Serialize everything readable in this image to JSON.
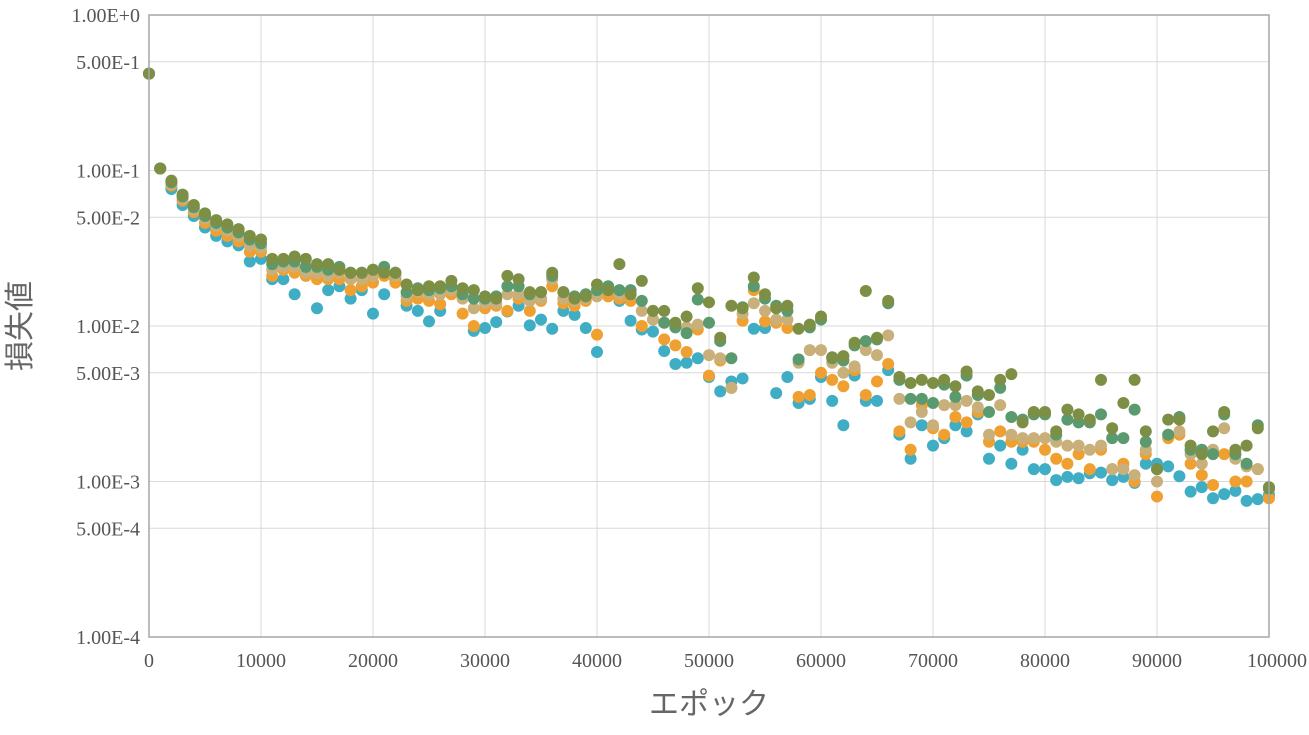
{
  "chart_data": {
    "type": "scatter",
    "xlabel": "エポック",
    "ylabel": "損失値",
    "x_scale": "linear",
    "y_scale": "log",
    "xlim": [
      0,
      100000
    ],
    "ylim": [
      0.0001,
      1
    ],
    "grid": true,
    "legend": "none",
    "x_ticks": [
      {
        "value": 0,
        "label": "0"
      },
      {
        "value": 10000,
        "label": "10000"
      },
      {
        "value": 20000,
        "label": "20000"
      },
      {
        "value": 30000,
        "label": "30000"
      },
      {
        "value": 40000,
        "label": "40000"
      },
      {
        "value": 50000,
        "label": "50000"
      },
      {
        "value": 60000,
        "label": "60000"
      },
      {
        "value": 70000,
        "label": "70000"
      },
      {
        "value": 80000,
        "label": "80000"
      },
      {
        "value": 90000,
        "label": "90000"
      },
      {
        "value": 100000,
        "label": "100000"
      }
    ],
    "y_ticks": [
      {
        "value": 1,
        "label": "1.00E+0"
      },
      {
        "value": 0.5,
        "label": "5.00E-1"
      },
      {
        "value": 0.1,
        "label": "1.00E-1"
      },
      {
        "value": 0.05,
        "label": "5.00E-2"
      },
      {
        "value": 0.01,
        "label": "1.00E-2"
      },
      {
        "value": 0.005,
        "label": "5.00E-3"
      },
      {
        "value": 0.001,
        "label": "1.00E-3"
      },
      {
        "value": 0.0005,
        "label": "5.00E-4"
      },
      {
        "value": 0.0001,
        "label": "1.00E-4"
      }
    ],
    "x": [
      0,
      1000,
      2000,
      3000,
      4000,
      5000,
      6000,
      7000,
      8000,
      9000,
      10000,
      11000,
      12000,
      13000,
      14000,
      15000,
      16000,
      17000,
      18000,
      19000,
      20000,
      21000,
      22000,
      23000,
      24000,
      25000,
      26000,
      27000,
      28000,
      29000,
      30000,
      31000,
      32000,
      33000,
      34000,
      35000,
      36000,
      37000,
      38000,
      39000,
      40000,
      41000,
      42000,
      43000,
      44000,
      45000,
      46000,
      47000,
      48000,
      49000,
      50000,
      51000,
      52000,
      53000,
      54000,
      55000,
      56000,
      57000,
      58000,
      59000,
      60000,
      61000,
      62000,
      63000,
      64000,
      65000,
      66000,
      67000,
      68000,
      69000,
      70000,
      71000,
      72000,
      73000,
      74000,
      75000,
      76000,
      77000,
      78000,
      79000,
      80000,
      81000,
      82000,
      83000,
      84000,
      85000,
      86000,
      87000,
      88000,
      89000,
      90000,
      91000,
      92000,
      93000,
      94000,
      95000,
      96000,
      97000,
      98000,
      99000,
      100000
    ],
    "series": [
      {
        "color": "#3fadc4",
        "values": [
          0.42,
          0.103,
          0.076,
          0.06,
          0.051,
          0.043,
          0.038,
          0.035,
          0.033,
          0.026,
          0.027,
          0.02,
          0.02,
          0.016,
          0.022,
          0.013,
          0.017,
          0.018,
          0.015,
          0.017,
          0.012,
          0.016,
          0.02,
          0.0135,
          0.0125,
          0.0107,
          0.0125,
          0.0165,
          0.0155,
          0.0093,
          0.0097,
          0.0106,
          0.0124,
          0.0135,
          0.0101,
          0.011,
          0.0096,
          0.0125,
          0.0118,
          0.0097,
          0.0068,
          0.0158,
          0.0145,
          0.0108,
          0.0095,
          0.0092,
          0.0069,
          0.0057,
          0.0058,
          0.0062,
          0.0047,
          0.0038,
          0.0044,
          0.0046,
          0.0096,
          0.0097,
          0.0037,
          0.0047,
          0.0032,
          0.0034,
          0.0047,
          0.0033,
          0.0023,
          0.0048,
          0.0033,
          0.0033,
          0.0052,
          0.002,
          0.0014,
          0.0023,
          0.0017,
          0.0019,
          0.0023,
          0.0021,
          0.0027,
          0.0014,
          0.0017,
          0.0013,
          0.0016,
          0.0012,
          0.0012,
          0.00102,
          0.00107,
          0.00105,
          0.00113,
          0.00114,
          0.00102,
          0.00107,
          0.00098,
          0.0013,
          0.0013,
          0.00125,
          0.00108,
          0.00086,
          0.00092,
          0.00078,
          0.00083,
          0.00087,
          0.00075,
          0.00077,
          0.00082
        ]
      },
      {
        "color": "#f0a030",
        "values": [
          0.42,
          0.103,
          0.08,
          0.064,
          0.054,
          0.046,
          0.041,
          0.038,
          0.035,
          0.03,
          0.03,
          0.021,
          0.023,
          0.022,
          0.021,
          0.02,
          0.02,
          0.02,
          0.017,
          0.018,
          0.019,
          0.021,
          0.019,
          0.0145,
          0.015,
          0.0145,
          0.0138,
          0.016,
          0.012,
          0.01,
          0.013,
          0.0135,
          0.0125,
          0.015,
          0.0125,
          0.0145,
          0.018,
          0.014,
          0.0135,
          0.0145,
          0.0088,
          0.0155,
          0.015,
          0.0145,
          0.01,
          0.011,
          0.0082,
          0.0075,
          0.0068,
          0.0095,
          0.0048,
          0.006,
          0.004,
          0.0108,
          0.017,
          0.0107,
          0.0105,
          0.0097,
          0.0035,
          0.0036,
          0.005,
          0.0045,
          0.0041,
          0.0052,
          0.0036,
          0.0044,
          0.0057,
          0.0021,
          0.0016,
          0.0031,
          0.0022,
          0.002,
          0.0026,
          0.0024,
          0.0028,
          0.0018,
          0.0021,
          0.0018,
          0.0018,
          0.0018,
          0.0016,
          0.0014,
          0.0013,
          0.0015,
          0.0012,
          0.0016,
          0.0012,
          0.0013,
          0.001,
          0.0015,
          0.0008,
          0.0019,
          0.002,
          0.0013,
          0.0011,
          0.00095,
          0.0015,
          0.001,
          0.001,
          0.0012,
          0.00078
        ]
      },
      {
        "color": "#c9b07a",
        "values": [
          0.42,
          0.103,
          0.082,
          0.066,
          0.056,
          0.049,
          0.044,
          0.041,
          0.038,
          0.033,
          0.032,
          0.023,
          0.024,
          0.024,
          0.022,
          0.022,
          0.021,
          0.022,
          0.02,
          0.02,
          0.021,
          0.022,
          0.021,
          0.0155,
          0.0165,
          0.016,
          0.016,
          0.017,
          0.015,
          0.013,
          0.014,
          0.014,
          0.016,
          0.016,
          0.0145,
          0.015,
          0.02,
          0.015,
          0.0145,
          0.015,
          0.0155,
          0.017,
          0.016,
          0.016,
          0.0125,
          0.011,
          0.0105,
          0.01,
          0.0098,
          0.0102,
          0.0065,
          0.0062,
          0.004,
          0.012,
          0.014,
          0.0125,
          0.011,
          0.011,
          0.0058,
          0.007,
          0.007,
          0.0058,
          0.005,
          0.0055,
          0.007,
          0.0065,
          0.0087,
          0.0034,
          0.0024,
          0.0028,
          0.0023,
          0.0031,
          0.0031,
          0.0033,
          0.003,
          0.002,
          0.0031,
          0.002,
          0.0019,
          0.0019,
          0.0019,
          0.0018,
          0.0017,
          0.0017,
          0.0016,
          0.0017,
          0.0012,
          0.0012,
          0.0011,
          0.0016,
          0.001,
          0.002,
          0.0021,
          0.0015,
          0.0013,
          0.0016,
          0.0022,
          0.0014,
          0.00125,
          0.0012,
          0.0009
        ]
      },
      {
        "color": "#5b9a6e",
        "values": [
          0.42,
          0.103,
          0.084,
          0.068,
          0.058,
          0.051,
          0.046,
          0.043,
          0.04,
          0.036,
          0.034,
          0.025,
          0.026,
          0.026,
          0.024,
          0.024,
          0.023,
          0.024,
          0.022,
          0.022,
          0.023,
          0.024,
          0.022,
          0.0165,
          0.0175,
          0.017,
          0.0175,
          0.018,
          0.016,
          0.015,
          0.015,
          0.0155,
          0.018,
          0.018,
          0.016,
          0.0165,
          0.021,
          0.0165,
          0.0155,
          0.016,
          0.017,
          0.018,
          0.017,
          0.017,
          0.0145,
          0.0125,
          0.0105,
          0.0098,
          0.009,
          0.0148,
          0.0105,
          0.008,
          0.0062,
          0.0132,
          0.018,
          0.015,
          0.0135,
          0.0125,
          0.0061,
          0.0098,
          0.011,
          0.0062,
          0.006,
          0.0075,
          0.008,
          0.0082,
          0.014,
          0.0045,
          0.0034,
          0.0034,
          0.0032,
          0.0042,
          0.0035,
          0.0048,
          0.0036,
          0.0028,
          0.004,
          0.0026,
          0.0025,
          0.0027,
          0.0027,
          0.002,
          0.0025,
          0.0024,
          0.0024,
          0.0027,
          0.0019,
          0.0019,
          0.0029,
          0.0018,
          0.0012,
          0.002,
          0.0026,
          0.0016,
          0.0016,
          0.0015,
          0.0027,
          0.0015,
          0.0013,
          0.0023,
          0.0009
        ]
      },
      {
        "color": "#7d8f45",
        "values": [
          0.42,
          0.103,
          0.086,
          0.07,
          0.06,
          0.053,
          0.048,
          0.045,
          0.042,
          0.038,
          0.036,
          0.027,
          0.027,
          0.028,
          0.027,
          0.025,
          0.025,
          0.023,
          0.022,
          0.022,
          0.023,
          0.022,
          0.022,
          0.0185,
          0.017,
          0.018,
          0.018,
          0.0195,
          0.0175,
          0.017,
          0.0155,
          0.015,
          0.021,
          0.02,
          0.0165,
          0.0165,
          0.022,
          0.0165,
          0.015,
          0.0155,
          0.0185,
          0.017,
          0.025,
          0.016,
          0.0195,
          0.0125,
          0.0125,
          0.0105,
          0.0115,
          0.0175,
          0.0142,
          0.0084,
          0.0135,
          0.013,
          0.0205,
          0.016,
          0.013,
          0.0135,
          0.0096,
          0.0102,
          0.0115,
          0.0063,
          0.0064,
          0.0078,
          0.0168,
          0.0084,
          0.0145,
          0.0047,
          0.0043,
          0.0045,
          0.0043,
          0.0045,
          0.0041,
          0.0051,
          0.0038,
          0.0036,
          0.0045,
          0.0049,
          0.0024,
          0.0028,
          0.0028,
          0.0021,
          0.0029,
          0.0027,
          0.0025,
          0.0045,
          0.0022,
          0.0032,
          0.0045,
          0.0021,
          0.0012,
          0.0025,
          0.0025,
          0.0017,
          0.0015,
          0.0021,
          0.0028,
          0.0016,
          0.0017,
          0.0022,
          0.00092
        ]
      }
    ]
  }
}
